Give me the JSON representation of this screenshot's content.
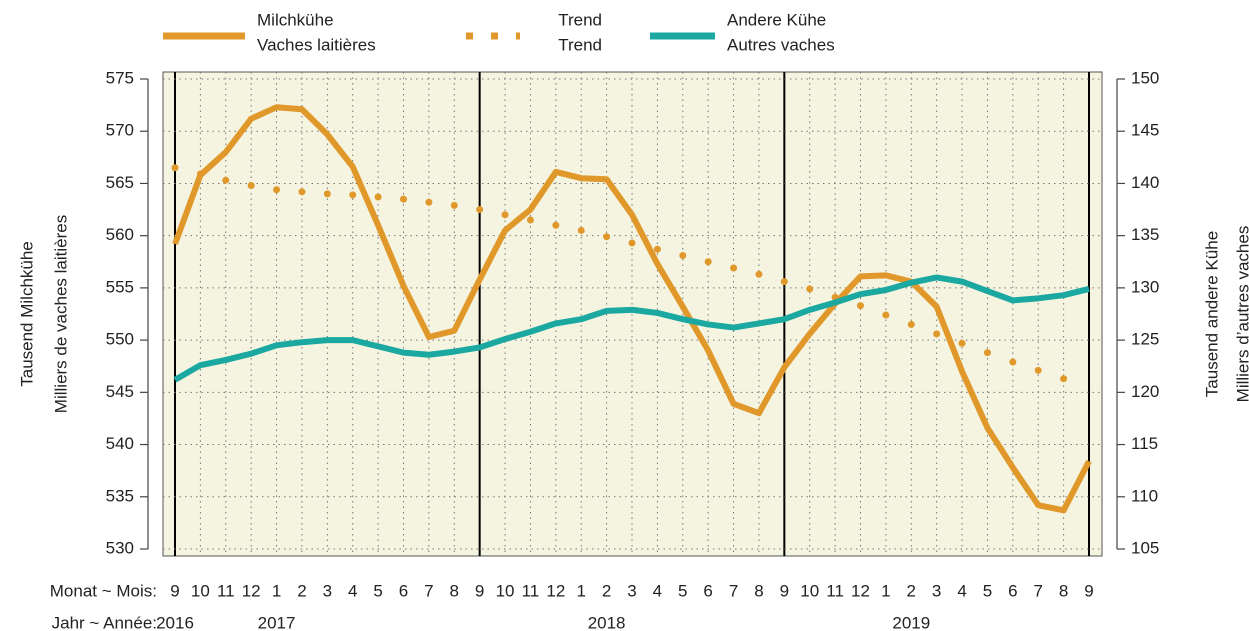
{
  "chart_data": {
    "type": "line",
    "categories": [
      "9",
      "10",
      "11",
      "12",
      "1",
      "2",
      "3",
      "4",
      "5",
      "6",
      "7",
      "8",
      "9",
      "10",
      "11",
      "12",
      "1",
      "2",
      "3",
      "4",
      "5",
      "6",
      "7",
      "8",
      "9",
      "10",
      "11",
      "12",
      "1",
      "2",
      "3",
      "4",
      "5",
      "6",
      "7",
      "8",
      "9"
    ],
    "years": [
      "2016",
      "2017",
      "2018",
      "2019"
    ],
    "x_label_month": "Monat  ~  Mois:",
    "x_label_year": "Jahr  ~  Année:",
    "y_label": [
      "Tausend Milchkühe",
      "Milliers de vaches laitières"
    ],
    "y2_label": [
      "Tausend andere Kühe",
      "Milliers d’autres vaches"
    ],
    "ylim": [
      530,
      575
    ],
    "yticks": [
      530,
      535,
      540,
      545,
      550,
      555,
      560,
      565,
      570,
      575
    ],
    "y2lim": [
      105,
      150
    ],
    "y2ticks": [
      105,
      110,
      115,
      120,
      125,
      130,
      135,
      140,
      145,
      150
    ],
    "grid": true,
    "background": "#f5f4e1",
    "series": [
      {
        "name": [
          "Milchkühe",
          "Vaches laitières"
        ],
        "color": "#e0982a",
        "style": "line",
        "axis": "y",
        "values": [
          559.2,
          565.8,
          568.0,
          571.2,
          572.3,
          572.1,
          569.7,
          566.6,
          561.0,
          555.2,
          550.3,
          550.9,
          555.8,
          560.5,
          562.5,
          566.1,
          565.5,
          565.4,
          562.0,
          557.3,
          553.2,
          549.0,
          543.9,
          543.0,
          547.4,
          550.6,
          553.5,
          556.1,
          556.2,
          555.6,
          553.2,
          547.0,
          541.6,
          537.8,
          534.2,
          533.7,
          538.4
        ]
      },
      {
        "name": [
          "Trend",
          "Trend"
        ],
        "color": "#e0982a",
        "style": "dots",
        "axis": "y",
        "values": [
          566.5,
          565.9,
          565.3,
          564.8,
          564.4,
          564.2,
          564.0,
          563.9,
          563.7,
          563.5,
          563.2,
          562.9,
          562.5,
          562.0,
          561.5,
          561.0,
          560.5,
          559.9,
          559.3,
          558.7,
          558.1,
          557.5,
          556.9,
          556.3,
          555.6,
          554.9,
          554.1,
          553.3,
          552.4,
          551.5,
          550.6,
          549.7,
          548.8,
          547.9,
          547.1,
          546.3,
          null
        ]
      },
      {
        "name": [
          "Andere Kühe",
          "Autres vaches"
        ],
        "color": "#1aa8a0",
        "style": "line",
        "axis": "y2",
        "values": [
          121.2,
          122.6,
          123.1,
          123.7,
          124.5,
          124.8,
          125.0,
          125.0,
          124.4,
          123.8,
          123.6,
          123.9,
          124.3,
          125.1,
          125.8,
          126.6,
          127.0,
          127.8,
          127.9,
          127.6,
          127.0,
          126.5,
          126.2,
          126.6,
          127.0,
          127.9,
          128.6,
          129.4,
          129.8,
          130.5,
          131.0,
          130.6,
          129.7,
          128.8,
          129.0,
          129.3,
          129.9
        ]
      }
    ]
  }
}
